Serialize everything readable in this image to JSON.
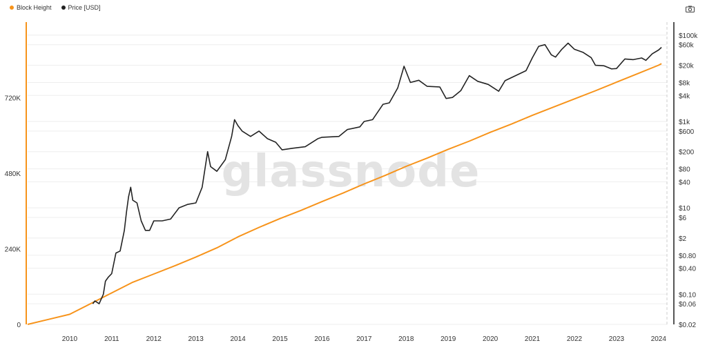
{
  "legend": [
    {
      "label": "Block Height",
      "color": "#f7931a"
    },
    {
      "label": "Price [USD]",
      "color": "#222222"
    }
  ],
  "watermark": "glassnode",
  "camera_icon": "camera-icon",
  "chart_data": {
    "type": "line",
    "title": "",
    "grid": true,
    "x": {
      "range": [
        2009.0,
        2024.2
      ],
      "ticks": [
        "2010",
        "2011",
        "2012",
        "2013",
        "2014",
        "2015",
        "2016",
        "2017",
        "2018",
        "2019",
        "2020",
        "2021",
        "2022",
        "2023",
        "2024"
      ]
    },
    "y_left": {
      "range": [
        0,
        960000
      ],
      "ticks": [
        {
          "v": 0,
          "label": "0"
        },
        {
          "v": 240000,
          "label": "240K"
        },
        {
          "v": 480000,
          "label": "480K"
        },
        {
          "v": 720000,
          "label": "720K"
        }
      ]
    },
    "y_right": {
      "scale": "log",
      "range": [
        0.02,
        200000
      ],
      "ticks": [
        {
          "v": 100000,
          "label": "$100k"
        },
        {
          "v": 60000,
          "label": "$60k"
        },
        {
          "v": 20000,
          "label": "$20k"
        },
        {
          "v": 8000,
          "label": "$8k"
        },
        {
          "v": 4000,
          "label": "$4k"
        },
        {
          "v": 1000,
          "label": "$1k"
        },
        {
          "v": 600,
          "label": "$600"
        },
        {
          "v": 200,
          "label": "$200"
        },
        {
          "v": 80,
          "label": "$80"
        },
        {
          "v": 40,
          "label": "$40"
        },
        {
          "v": 10,
          "label": "$10"
        },
        {
          "v": 6,
          "label": "$6"
        },
        {
          "v": 2,
          "label": "$2"
        },
        {
          "v": 0.8,
          "label": "$0.80"
        },
        {
          "v": 0.4,
          "label": "$0.40"
        },
        {
          "v": 0.1,
          "label": "$0.10"
        },
        {
          "v": 0.06,
          "label": "$0.06"
        },
        {
          "v": 0.02,
          "label": "$0.02"
        }
      ]
    },
    "series": [
      {
        "name": "Block Height",
        "axis": "left",
        "color": "#f7931a",
        "points": [
          [
            2009.0,
            0
          ],
          [
            2009.5,
            16000
          ],
          [
            2010.0,
            32000
          ],
          [
            2010.5,
            66000
          ],
          [
            2011.0,
            100000
          ],
          [
            2011.5,
            134000
          ],
          [
            2012.0,
            160000
          ],
          [
            2012.5,
            186000
          ],
          [
            2013.0,
            214000
          ],
          [
            2013.5,
            243000
          ],
          [
            2014.0,
            278000
          ],
          [
            2014.5,
            308000
          ],
          [
            2015.0,
            336000
          ],
          [
            2015.5,
            362000
          ],
          [
            2016.0,
            390000
          ],
          [
            2016.5,
            417000
          ],
          [
            2017.0,
            446000
          ],
          [
            2017.5,
            473000
          ],
          [
            2018.0,
            502000
          ],
          [
            2018.5,
            528000
          ],
          [
            2019.0,
            556000
          ],
          [
            2019.5,
            582000
          ],
          [
            2020.0,
            610000
          ],
          [
            2020.5,
            636000
          ],
          [
            2021.0,
            664000
          ],
          [
            2021.5,
            690000
          ],
          [
            2022.0,
            716000
          ],
          [
            2022.5,
            742000
          ],
          [
            2023.0,
            769000
          ],
          [
            2023.5,
            796000
          ],
          [
            2024.0,
            823000
          ],
          [
            2024.07,
            828000
          ]
        ]
      },
      {
        "name": "Price [USD]",
        "axis": "right",
        "color": "#222222",
        "points": [
          [
            2010.55,
            0.06
          ],
          [
            2010.6,
            0.07
          ],
          [
            2010.7,
            0.06
          ],
          [
            2010.8,
            0.1
          ],
          [
            2010.85,
            0.2
          ],
          [
            2010.92,
            0.25
          ],
          [
            2011.0,
            0.3
          ],
          [
            2011.1,
            0.9
          ],
          [
            2011.2,
            1.0
          ],
          [
            2011.3,
            3.0
          ],
          [
            2011.35,
            8.0
          ],
          [
            2011.4,
            18.0
          ],
          [
            2011.45,
            30.0
          ],
          [
            2011.5,
            15.0
          ],
          [
            2011.6,
            13.0
          ],
          [
            2011.7,
            5.0
          ],
          [
            2011.8,
            3.0
          ],
          [
            2011.9,
            3.0
          ],
          [
            2012.0,
            5.0
          ],
          [
            2012.2,
            5.0
          ],
          [
            2012.4,
            5.5
          ],
          [
            2012.6,
            10.0
          ],
          [
            2012.8,
            12.0
          ],
          [
            2013.0,
            13.0
          ],
          [
            2013.15,
            30.0
          ],
          [
            2013.28,
            200.0
          ],
          [
            2013.35,
            90.0
          ],
          [
            2013.5,
            70.0
          ],
          [
            2013.7,
            130.0
          ],
          [
            2013.85,
            450.0
          ],
          [
            2013.92,
            1100.0
          ],
          [
            2014.0,
            800.0
          ],
          [
            2014.1,
            600.0
          ],
          [
            2014.3,
            450.0
          ],
          [
            2014.5,
            600.0
          ],
          [
            2014.7,
            400.0
          ],
          [
            2014.9,
            330.0
          ],
          [
            2015.05,
            220.0
          ],
          [
            2015.3,
            240.0
          ],
          [
            2015.6,
            260.0
          ],
          [
            2015.9,
            400.0
          ],
          [
            2016.0,
            430.0
          ],
          [
            2016.4,
            450.0
          ],
          [
            2016.6,
            650.0
          ],
          [
            2016.9,
            750.0
          ],
          [
            2017.0,
            1000.0
          ],
          [
            2017.2,
            1100.0
          ],
          [
            2017.45,
            2500.0
          ],
          [
            2017.6,
            2700.0
          ],
          [
            2017.8,
            6000.0
          ],
          [
            2017.95,
            19000.0
          ],
          [
            2018.1,
            8000.0
          ],
          [
            2018.3,
            9000.0
          ],
          [
            2018.5,
            6500.0
          ],
          [
            2018.8,
            6300.0
          ],
          [
            2018.95,
            3400.0
          ],
          [
            2019.1,
            3600.0
          ],
          [
            2019.3,
            5200.0
          ],
          [
            2019.5,
            11500.0
          ],
          [
            2019.7,
            8500.0
          ],
          [
            2019.95,
            7200.0
          ],
          [
            2020.2,
            5000.0
          ],
          [
            2020.35,
            8800.0
          ],
          [
            2020.6,
            11500.0
          ],
          [
            2020.85,
            15000.0
          ],
          [
            2021.0,
            30000.0
          ],
          [
            2021.15,
            55000.0
          ],
          [
            2021.3,
            60000.0
          ],
          [
            2021.45,
            35000.0
          ],
          [
            2021.55,
            31000.0
          ],
          [
            2021.7,
            47000.0
          ],
          [
            2021.85,
            65000.0
          ],
          [
            2022.0,
            47000.0
          ],
          [
            2022.2,
            40000.0
          ],
          [
            2022.4,
            30000.0
          ],
          [
            2022.5,
            20000.0
          ],
          [
            2022.7,
            19500.0
          ],
          [
            2022.88,
            16500.0
          ],
          [
            2023.0,
            16800.0
          ],
          [
            2023.2,
            28000.0
          ],
          [
            2023.4,
            27000.0
          ],
          [
            2023.6,
            29500.0
          ],
          [
            2023.7,
            26000.0
          ],
          [
            2023.85,
            37000.0
          ],
          [
            2024.0,
            45000.0
          ],
          [
            2024.07,
            52000.0
          ]
        ]
      }
    ]
  }
}
